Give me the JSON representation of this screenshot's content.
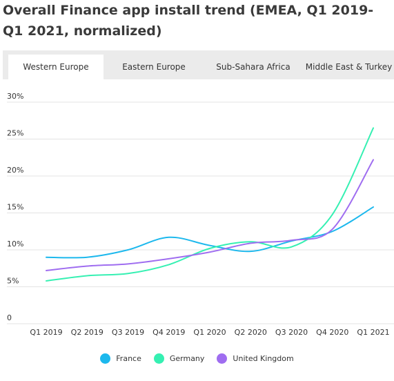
{
  "title": "Overall Finance app install trend (EMEA, Q1 2019-Q1 2021, normalized)",
  "tabs": [
    {
      "label": "Western Europe",
      "active": true
    },
    {
      "label": "Eastern Europe",
      "active": false
    },
    {
      "label": "Sub-Sahara Africa",
      "active": false
    },
    {
      "label": "Middle East & Turkey",
      "active": false
    }
  ],
  "chart_data": {
    "type": "line",
    "categories": [
      "Q1 2019",
      "Q2 2019",
      "Q3 2019",
      "Q4 2019",
      "Q1 2020",
      "Q2 2020",
      "Q3 2020",
      "Q4 2020",
      "Q1 2021"
    ],
    "y_ticks": [
      "30%",
      "25%",
      "20%",
      "15%",
      "10%",
      "5%",
      "0"
    ],
    "ylim": [
      0,
      30
    ],
    "grid": true,
    "legend_position": "bottom",
    "series": [
      {
        "name": "France",
        "color": "#1cb8ed",
        "values": [
          9.0,
          9.0,
          10.0,
          11.7,
          10.6,
          9.8,
          11.2,
          12.5,
          15.8
        ]
      },
      {
        "name": "Germany",
        "color": "#35f0b2",
        "values": [
          5.8,
          6.5,
          6.8,
          8.0,
          10.2,
          11.1,
          10.4,
          14.8,
          26.5
        ]
      },
      {
        "name": "United Kingdom",
        "color": "#9f6df0",
        "values": [
          7.2,
          7.8,
          8.1,
          8.8,
          9.7,
          10.9,
          11.3,
          12.8,
          22.2
        ]
      }
    ]
  }
}
